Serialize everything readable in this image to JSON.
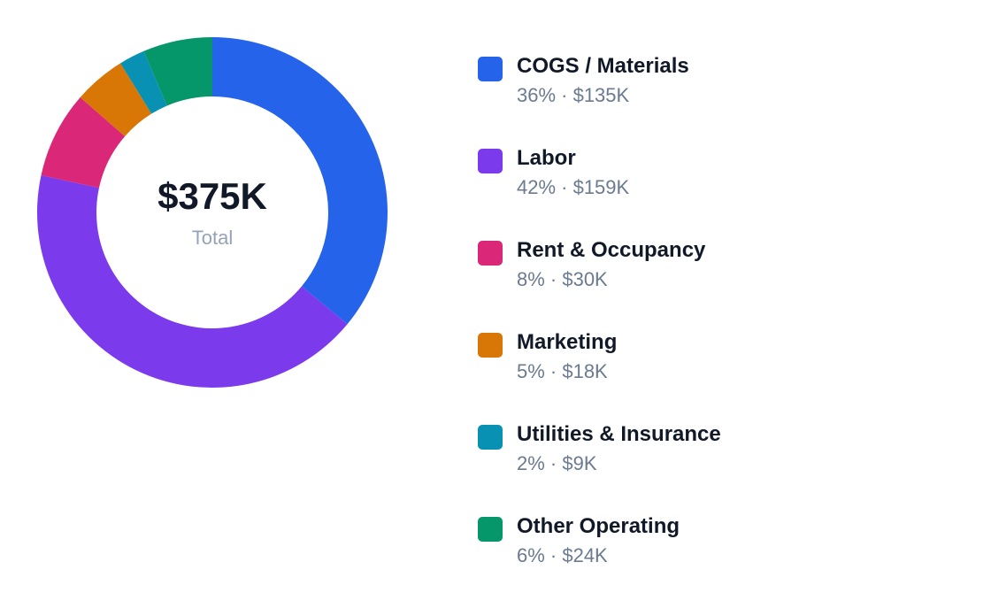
{
  "chart_data": {
    "type": "pie",
    "variant": "donut",
    "center_value": "$375K",
    "center_label": "Total",
    "categories": [
      "COGS / Materials",
      "Labor",
      "Rent & Occupancy",
      "Marketing",
      "Utilities & Insurance",
      "Other Operating"
    ],
    "values": [
      135,
      159,
      30,
      18,
      9,
      24
    ],
    "value_unit": "$K",
    "percent_labels": [
      "36%",
      "42%",
      "8%",
      "5%",
      "2%",
      "6%"
    ],
    "value_labels": [
      "$135K",
      "$159K",
      "$30K",
      "$18K",
      "$9K",
      "$24K"
    ],
    "colors": [
      "#2563eb",
      "#7c3aed",
      "#db2777",
      "#d97706",
      "#0891b2",
      "#059669"
    ],
    "legend_position": "right"
  }
}
